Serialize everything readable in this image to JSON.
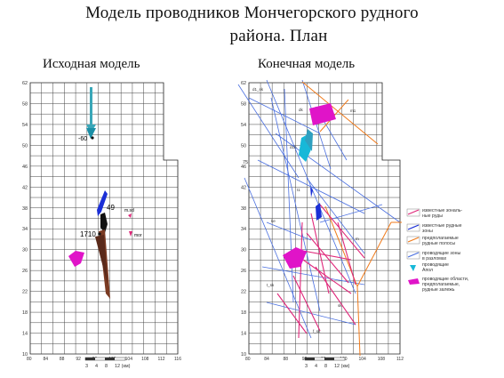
{
  "title_line1": "Модель проводников Мончегорского рудного",
  "title_line2": "района. План",
  "left_panel": {
    "subtitle": "Исходная модель",
    "y_ticks": [
      "62",
      "58",
      "54",
      "50",
      "46",
      "42",
      "38",
      "34",
      "30",
      "26",
      "22",
      "18",
      "14",
      "10"
    ],
    "x_ticks": [
      "80",
      "84",
      "88",
      "92",
      "96",
      "100",
      "104",
      "108",
      "112",
      "116"
    ],
    "labels": [
      "-60",
      "49",
      "1710",
      "76",
      "m.sd",
      "mor",
      "m.et"
    ],
    "scale_ticks": [
      "3",
      "4",
      "8",
      "12 (км)"
    ]
  },
  "right_panel": {
    "subtitle": "Конечная модель",
    "y_ticks": [
      "62",
      "58",
      "54",
      "50",
      "46",
      "42",
      "38",
      "34",
      "30",
      "26",
      "22",
      "18",
      "14",
      "10"
    ],
    "x_ticks": [
      "80",
      "84",
      "88",
      "92",
      "96",
      "100",
      "104",
      "108",
      "112"
    ],
    "labels": [
      "75",
      "d1b",
      "t1"
    ],
    "scale_ticks": [
      "3",
      "4",
      "8",
      "12 (км)"
    ]
  },
  "legend": [
    {
      "text": "известные зональ-\nные руды",
      "color": "#e0287a"
    },
    {
      "text": "известные рудные\nзоны",
      "color": "#1b2fd6"
    },
    {
      "text": "предполагаемые\nрудные полосы",
      "color": "#f07a1a"
    },
    {
      "text": "проводящие зоны\nв разломах",
      "color": "#4a6fe0"
    },
    {
      "text": "проводящие\nАпол",
      "color": "#17b8d8"
    },
    {
      "text": "проводящие области,\nпредполагаемые,\nрудные залежь",
      "color": "#e014c8"
    }
  ]
}
